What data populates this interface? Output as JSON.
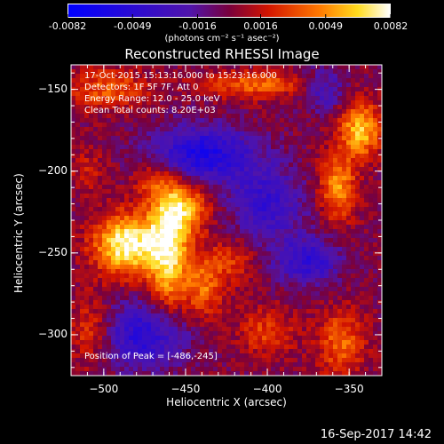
{
  "header": {
    "colorbar_ticks": [
      "-0.0082",
      "-0.0049",
      "-0.0016",
      "0.0016",
      "0.0049",
      "0.0082"
    ],
    "colorbar_units": "(photons cm⁻² s⁻¹ asec⁻²)"
  },
  "footer": {
    "timestamp": "16-Sep-2017 14:42"
  },
  "chart_data": {
    "type": "heatmap",
    "title": "Reconstructed RHESSI Image",
    "xlabel": "Heliocentric X (arcsec)",
    "ylabel": "Heliocentric Y (arcsec)",
    "xlim": [
      -520,
      -330
    ],
    "ylim": [
      -325,
      -135
    ],
    "x_ticks": [
      -500,
      -450,
      -400,
      -350
    ],
    "y_ticks": [
      -150,
      -200,
      -250,
      -300
    ],
    "x_tick_labels": [
      "−500",
      "−450",
      "−400",
      "−350"
    ],
    "y_tick_labels": [
      "−150",
      "−200",
      "−250",
      "−300"
    ],
    "colorbar": {
      "min": -0.0082,
      "max": 0.0082
    },
    "annotations": {
      "line1": "17-Oct-2015 15:13:16.000 to 15:23:16.000",
      "line2": "Detectors: 1F 5F 7F, Att 0",
      "line3": "Energy Range: 12.0 - 25.0 keV",
      "line4": "Clean     Total counts: 8.20E+03",
      "peak": "Position of Peak = [-486,-245]"
    },
    "peak": {
      "x": -486,
      "y": -245
    },
    "sources": [
      {
        "x": -486,
        "y": -245,
        "sx": 14,
        "sy": 13,
        "amp": 0.0082
      },
      {
        "x": -460,
        "y": -250,
        "sx": 9,
        "sy": 25,
        "amp": 0.0068
      },
      {
        "x": -452,
        "y": -222,
        "sx": 12,
        "sy": 12,
        "amp": 0.005
      },
      {
        "x": -470,
        "y": -205,
        "sx": 8,
        "sy": 8,
        "amp": 0.003
      },
      {
        "x": -438,
        "y": -272,
        "sx": 8,
        "sy": 13,
        "amp": 0.004
      },
      {
        "x": -422,
        "y": -255,
        "sx": 10,
        "sy": 9,
        "amp": 0.0028
      },
      {
        "x": -343,
        "y": -175,
        "sx": 9,
        "sy": 12,
        "amp": 0.0062
      },
      {
        "x": -357,
        "y": -210,
        "sx": 8,
        "sy": 14,
        "amp": 0.005
      },
      {
        "x": -408,
        "y": -147,
        "sx": 22,
        "sy": 6,
        "amp": 0.004
      },
      {
        "x": -498,
        "y": -150,
        "sx": 18,
        "sy": 9,
        "amp": 0.0035
      },
      {
        "x": -355,
        "y": -305,
        "sx": 10,
        "sy": 14,
        "amp": 0.004
      },
      {
        "x": -400,
        "y": -298,
        "sx": 12,
        "sy": 10,
        "amp": 0.003
      },
      {
        "x": -508,
        "y": -298,
        "sx": 9,
        "sy": 14,
        "amp": 0.003
      },
      {
        "x": -510,
        "y": -200,
        "sx": 8,
        "sy": 10,
        "amp": 0.0018
      },
      {
        "x": -440,
        "y": -190,
        "sx": 22,
        "sy": 12,
        "amp": -0.006
      },
      {
        "x": -375,
        "y": -255,
        "sx": 14,
        "sy": 10,
        "amp": -0.0045
      },
      {
        "x": -475,
        "y": -300,
        "sx": 18,
        "sy": 14,
        "amp": -0.005
      },
      {
        "x": -400,
        "y": -220,
        "sx": 16,
        "sy": 16,
        "amp": -0.004
      },
      {
        "x": -365,
        "y": -150,
        "sx": 10,
        "sy": 10,
        "amp": -0.003
      }
    ],
    "colors": {
      "axes": "#ffffff",
      "background": "#000000"
    }
  }
}
